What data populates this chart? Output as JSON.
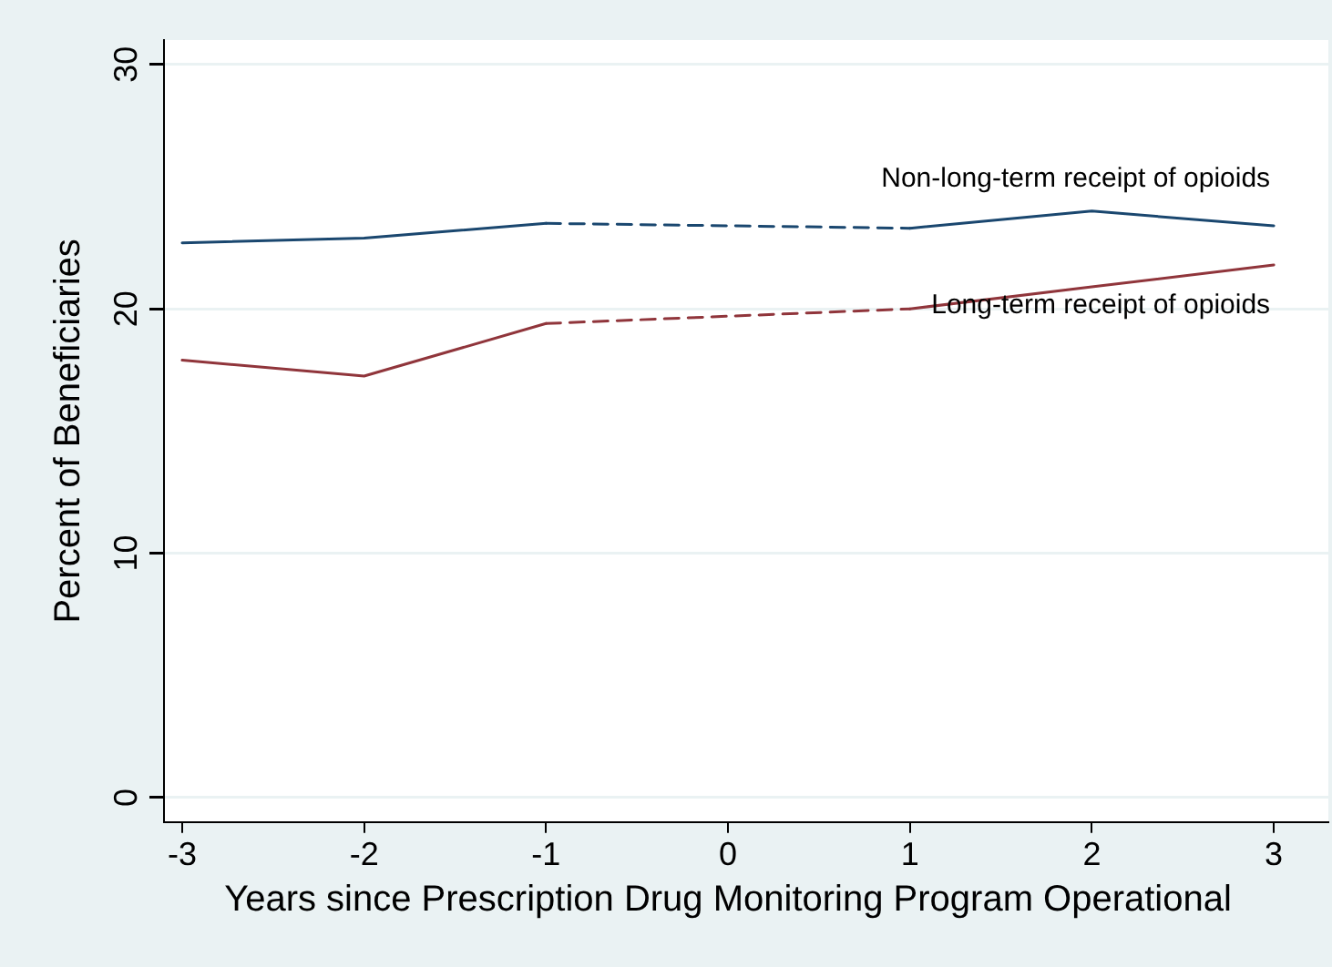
{
  "chart_data": {
    "type": "line",
    "xlabel": "Years since Prescription Drug Monitoring Program Operational",
    "ylabel": "Percent of Beneficiaries",
    "xlim": [
      -3.1,
      3.3
    ],
    "xticks": [
      -3,
      -2,
      -1,
      0,
      1,
      2,
      3
    ],
    "ylim": [
      -1,
      31
    ],
    "yticks": [
      0,
      10,
      20,
      30
    ],
    "grid": "y",
    "legend": false,
    "marker": "none",
    "series": [
      {
        "color": "#1a476f",
        "x": [
          -3,
          -2,
          -1
        ],
        "values": [
          22.7,
          22.9,
          23.5
        ],
        "line_style": "solid"
      },
      {
        "color": "#1a476f",
        "x": [
          -1,
          1
        ],
        "values": [
          23.5,
          23.3
        ],
        "line_style": "dashed"
      },
      {
        "name": "Non-long-term receipt of opioids",
        "color": "#1a476f",
        "x": [
          1,
          2,
          3
        ],
        "values": [
          23.3,
          24.0,
          23.4
        ],
        "line_style": "solid"
      },
      {
        "color": "#90353b",
        "x": [
          -3,
          -2,
          -1
        ],
        "values": [
          17.9,
          17.25,
          19.4
        ],
        "line_style": "solid"
      },
      {
        "color": "#90353b",
        "x": [
          -1,
          1
        ],
        "values": [
          19.4,
          20.0
        ],
        "line_style": "dashed"
      },
      {
        "name": "Long-term receipt of opioids",
        "color": "#90353b",
        "x": [
          1,
          2,
          3
        ],
        "values": [
          20.0,
          20.9,
          21.8
        ],
        "line_style": "solid"
      }
    ]
  }
}
